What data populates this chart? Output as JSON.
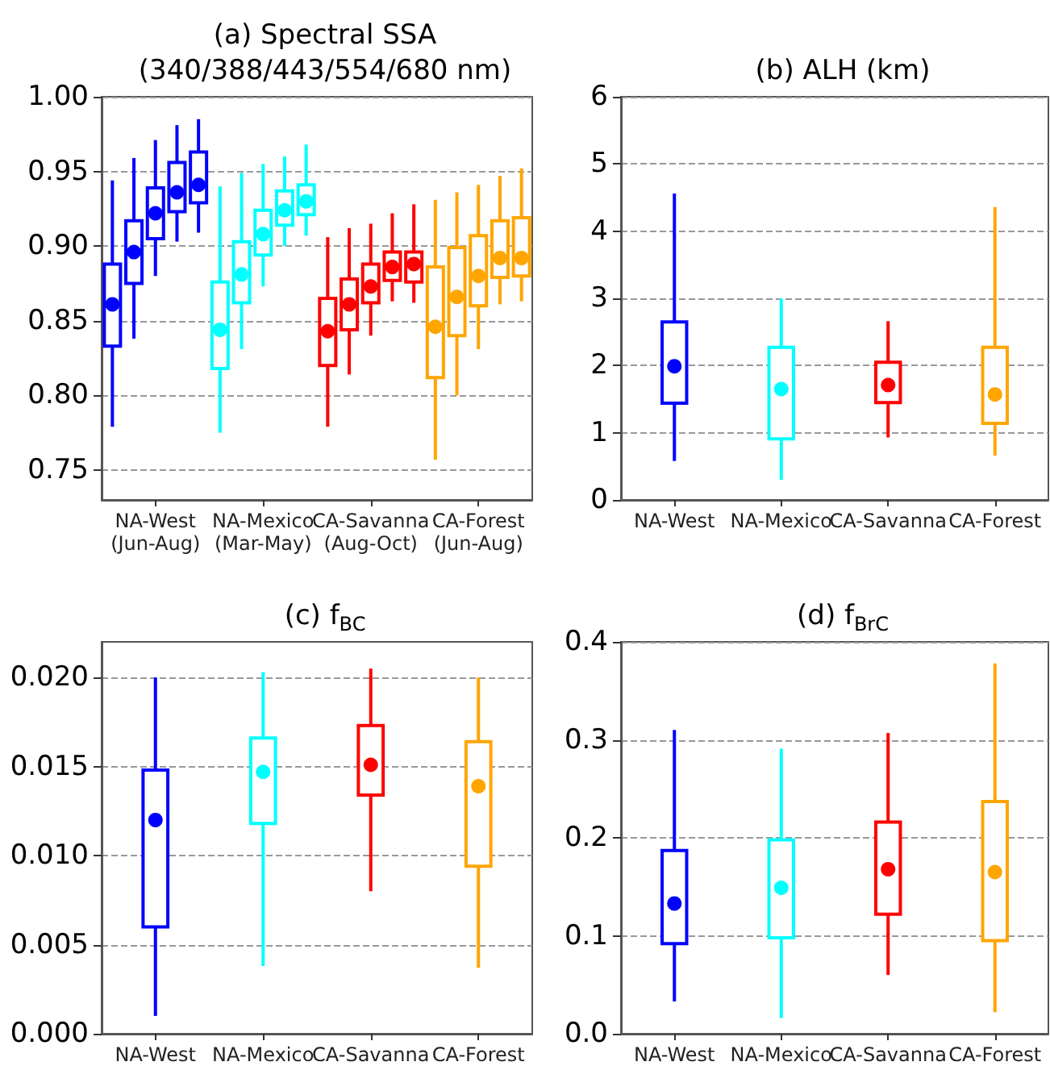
{
  "chart_data": [
    {
      "type": "box",
      "title": "(a) Spectral SSA\n(340/388/443/554/680 nm)",
      "categories": [
        "NA-West\n(Jun-Aug)",
        "NA-Mexico\n(Mar-May)",
        "CA-Savanna\n(Aug-Oct)",
        "CA-Forest\n(Jun-Aug)"
      ],
      "ylim": [
        0.73,
        1.0
      ],
      "yticks": [
        0.75,
        {
          "value": 0.8,
          "label": "0.80"
        },
        0.85,
        {
          "value": 0.9,
          "label": "0.90"
        },
        0.95,
        {
          "value": 1.0,
          "label": "1.00"
        }
      ],
      "grid": "y",
      "marker": "circle",
      "series": [
        {
          "colors": [
            "#0000ff",
            "#00ffff",
            "#ff0000",
            "#ffa500"
          ],
          "boxes": [
            {
              "low": 0.779,
              "q1": 0.833,
              "q3": 0.888,
              "high": 0.944,
              "mean": 0.861
            },
            {
              "low": 0.775,
              "q1": 0.818,
              "q3": 0.876,
              "high": 0.94,
              "mean": 0.844
            },
            {
              "low": 0.779,
              "q1": 0.82,
              "q3": 0.865,
              "high": 0.906,
              "mean": 0.843
            },
            {
              "low": 0.757,
              "q1": 0.812,
              "q3": 0.886,
              "high": 0.931,
              "mean": 0.846
            }
          ]
        },
        {
          "colors": [
            "#0000ff",
            "#00ffff",
            "#ff0000",
            "#ffa500"
          ],
          "boxes": [
            {
              "low": 0.838,
              "q1": 0.875,
              "q3": 0.917,
              "high": 0.959,
              "mean": 0.896
            },
            {
              "low": 0.831,
              "q1": 0.862,
              "q3": 0.903,
              "high": 0.949,
              "mean": 0.881
            },
            {
              "low": 0.814,
              "q1": 0.844,
              "q3": 0.878,
              "high": 0.912,
              "mean": 0.861
            },
            {
              "low": 0.8,
              "q1": 0.84,
              "q3": 0.899,
              "high": 0.936,
              "mean": 0.866
            }
          ]
        },
        {
          "colors": [
            "#0000ff",
            "#00ffff",
            "#ff0000",
            "#ffa500"
          ],
          "boxes": [
            {
              "low": 0.88,
              "q1": 0.905,
              "q3": 0.939,
              "high": 0.971,
              "mean": 0.922
            },
            {
              "low": 0.873,
              "q1": 0.894,
              "q3": 0.924,
              "high": 0.955,
              "mean": 0.908
            },
            {
              "low": 0.84,
              "q1": 0.862,
              "q3": 0.888,
              "high": 0.915,
              "mean": 0.873
            },
            {
              "low": 0.831,
              "q1": 0.86,
              "q3": 0.907,
              "high": 0.941,
              "mean": 0.88
            }
          ]
        },
        {
          "colors": [
            "#0000ff",
            "#00ffff",
            "#ff0000",
            "#ffa500"
          ],
          "boxes": [
            {
              "low": 0.903,
              "q1": 0.923,
              "q3": 0.956,
              "high": 0.981,
              "mean": 0.936
            },
            {
              "low": 0.9,
              "q1": 0.914,
              "q3": 0.937,
              "high": 0.96,
              "mean": 0.924
            },
            {
              "low": 0.863,
              "q1": 0.877,
              "q3": 0.896,
              "high": 0.922,
              "mean": 0.886
            },
            {
              "low": 0.861,
              "q1": 0.879,
              "q3": 0.917,
              "high": 0.947,
              "mean": 0.892
            }
          ]
        },
        {
          "colors": [
            "#0000ff",
            "#00ffff",
            "#ff0000",
            "#ffa500"
          ],
          "boxes": [
            {
              "low": 0.909,
              "q1": 0.929,
              "q3": 0.963,
              "high": 0.985,
              "mean": 0.941
            },
            {
              "low": 0.907,
              "q1": 0.921,
              "q3": 0.941,
              "high": 0.968,
              "mean": 0.93
            },
            {
              "low": 0.862,
              "q1": 0.876,
              "q3": 0.896,
              "high": 0.928,
              "mean": 0.888
            },
            {
              "low": 0.863,
              "q1": 0.88,
              "q3": 0.919,
              "high": 0.952,
              "mean": 0.892
            }
          ]
        }
      ]
    },
    {
      "type": "box",
      "title": "(b) ALH (km)",
      "categories": [
        "NA-West",
        "NA-Mexico",
        "CA-Savanna",
        "CA-Forest"
      ],
      "ylim": [
        0,
        6
      ],
      "yticks": [
        0,
        1,
        2,
        3,
        4,
        5,
        6
      ],
      "grid": "y",
      "marker": "circle",
      "colors": [
        "#0000ff",
        "#00ffff",
        "#ff0000",
        "#ffa500"
      ],
      "boxes": [
        {
          "low": 0.58,
          "q1": 1.44,
          "q3": 2.65,
          "high": 4.56,
          "mean": 1.99
        },
        {
          "low": 0.3,
          "q1": 0.91,
          "q3": 2.27,
          "high": 3.0,
          "mean": 1.65
        },
        {
          "low": 0.93,
          "q1": 1.45,
          "q3": 2.05,
          "high": 2.66,
          "mean": 1.71
        },
        {
          "low": 0.66,
          "q1": 1.14,
          "q3": 2.27,
          "high": 4.36,
          "mean": 1.57
        }
      ]
    },
    {
      "type": "box",
      "title": "(c) f$_{BC}$",
      "categories": [
        "NA-West",
        "NA-Mexico",
        "CA-Savanna",
        "CA-Forest"
      ],
      "ylim": [
        0,
        0.022
      ],
      "yticks": [
        {
          "value": 0,
          "label": "0.000"
        },
        {
          "value": 0.005,
          "label": "0.005"
        },
        {
          "value": 0.01,
          "label": "0.010"
        },
        {
          "value": 0.015,
          "label": "0.015"
        },
        {
          "value": 0.02,
          "label": "0.020"
        }
      ],
      "grid": "y",
      "marker": "circle",
      "colors": [
        "#0000ff",
        "#00ffff",
        "#ff0000",
        "#ffa500"
      ],
      "boxes": [
        {
          "low": 0.001,
          "q1": 0.006,
          "q3": 0.0148,
          "high": 0.02,
          "mean": 0.012
        },
        {
          "low": 0.0038,
          "q1": 0.0118,
          "q3": 0.0166,
          "high": 0.0203,
          "mean": 0.0147
        },
        {
          "low": 0.008,
          "q1": 0.0134,
          "q3": 0.0173,
          "high": 0.0205,
          "mean": 0.0151
        },
        {
          "low": 0.0037,
          "q1": 0.0094,
          "q3": 0.0164,
          "high": 0.02,
          "mean": 0.0139
        }
      ]
    },
    {
      "type": "box",
      "title": "(d) f$_{BrC}$",
      "categories": [
        "NA-West",
        "NA-Mexico",
        "CA-Savanna",
        "CA-Forest"
      ],
      "ylim": [
        0,
        0.4
      ],
      "yticks": [
        {
          "value": 0,
          "label": "0.0"
        },
        0.1,
        0.2,
        0.3,
        0.4
      ],
      "grid": "y",
      "marker": "circle",
      "colors": [
        "#0000ff",
        "#00ffff",
        "#ff0000",
        "#ffa500"
      ],
      "boxes": [
        {
          "low": 0.033,
          "q1": 0.092,
          "q3": 0.187,
          "high": 0.31,
          "mean": 0.133
        },
        {
          "low": 0.016,
          "q1": 0.098,
          "q3": 0.198,
          "high": 0.291,
          "mean": 0.149
        },
        {
          "low": 0.06,
          "q1": 0.122,
          "q3": 0.216,
          "high": 0.307,
          "mean": 0.168
        },
        {
          "low": 0.022,
          "q1": 0.095,
          "q3": 0.237,
          "high": 0.378,
          "mean": 0.165
        }
      ]
    }
  ]
}
